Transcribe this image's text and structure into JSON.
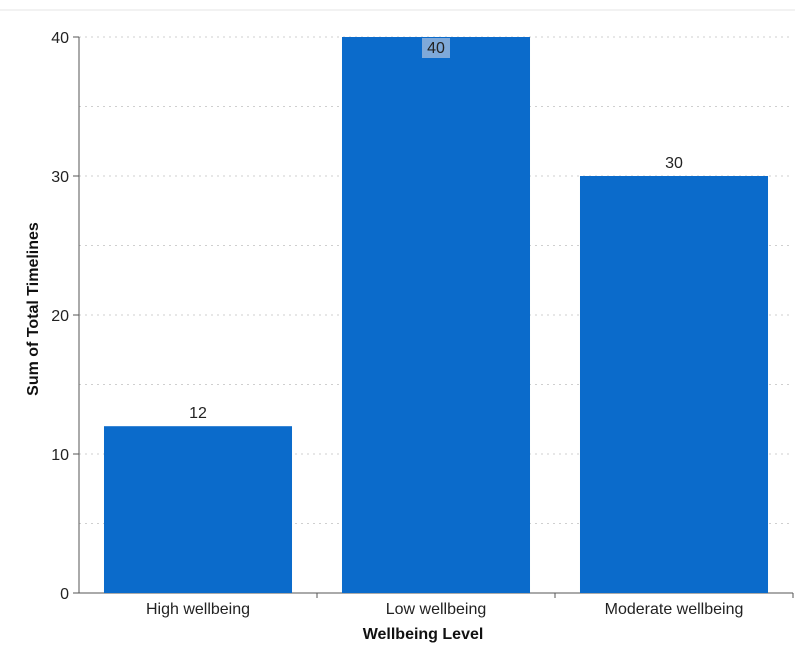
{
  "chart_data": {
    "type": "bar",
    "categories": [
      "High wellbeing",
      "Low wellbeing",
      "Moderate wellbeing"
    ],
    "values": [
      12,
      40,
      30
    ],
    "title": "",
    "xlabel": "Wellbeing Level",
    "ylabel": "Sum of Total Timelines",
    "ylim": [
      0,
      40
    ],
    "yticks": [
      0,
      10,
      20,
      30,
      40
    ],
    "grid": true,
    "bar_color": "#0b6bcb",
    "highlighted_label_index": 1,
    "highlight_color": "#7fa9d9"
  }
}
